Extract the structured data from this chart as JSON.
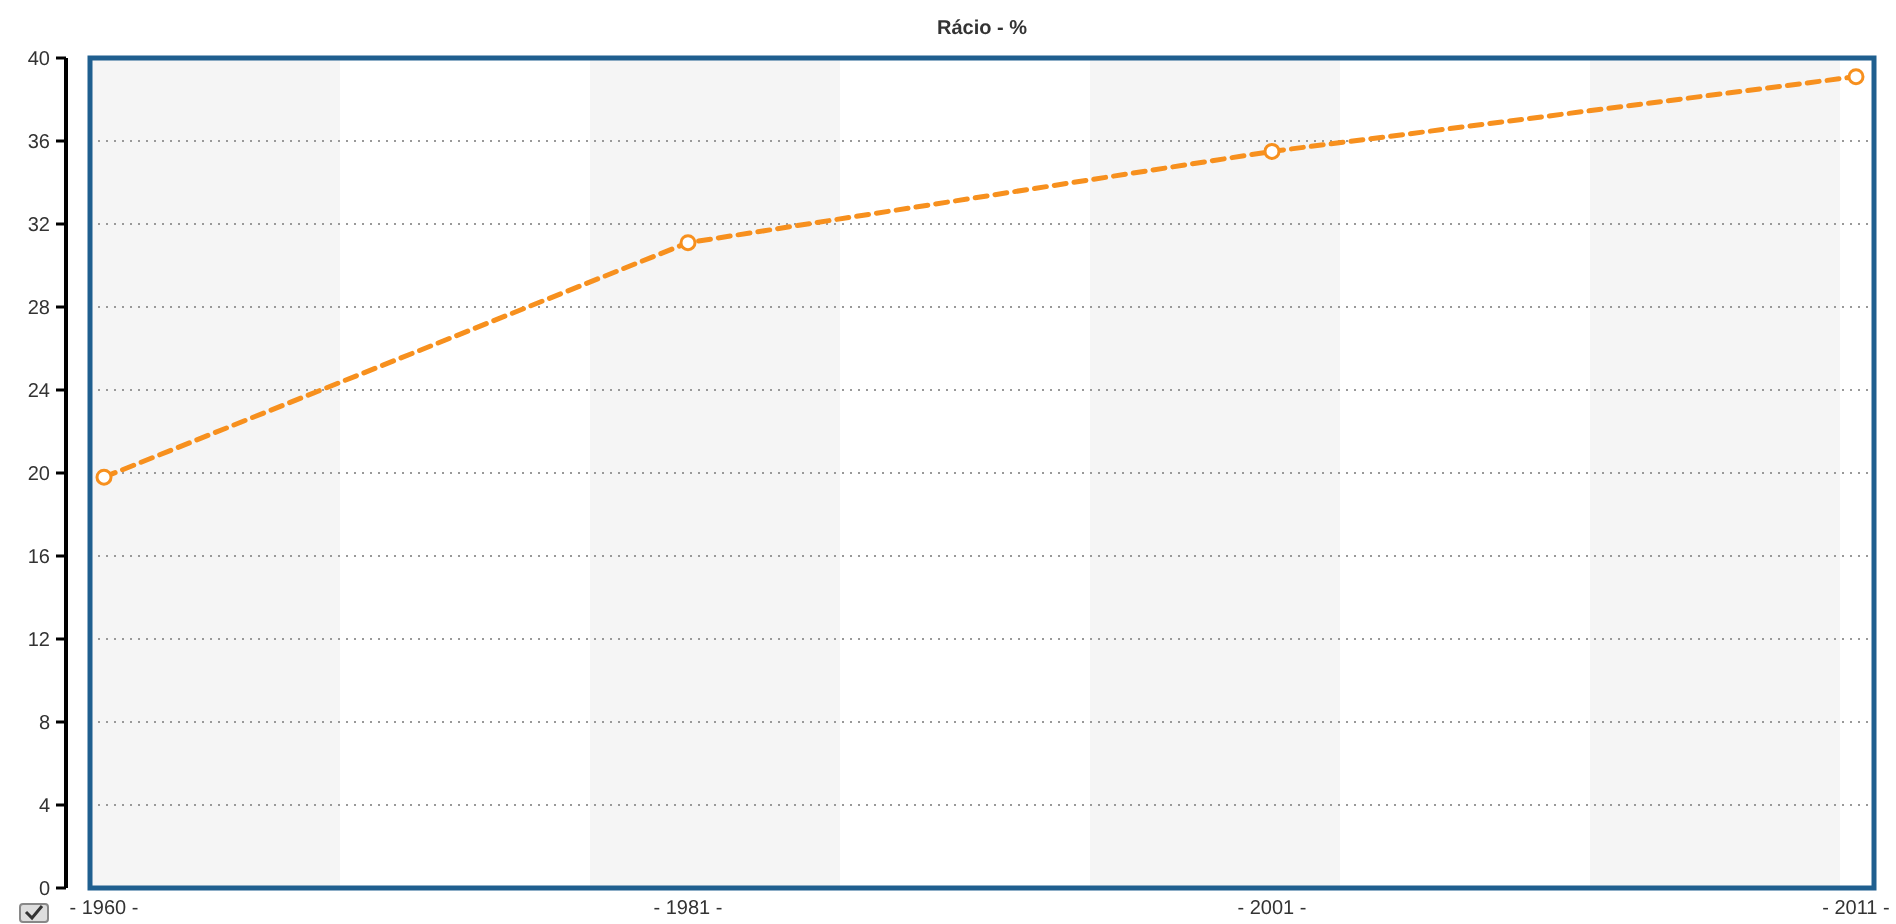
{
  "chart_data": {
    "type": "line",
    "title": "Rácio - %",
    "categories": [
      "- 1960 -",
      "- 1981 -",
      "- 2001 -",
      "- 2011 -"
    ],
    "series": [
      {
        "color": "#f7901e",
        "values": [
          19.8,
          31.1,
          35.5,
          39.1
        ]
      }
    ],
    "ylim": [
      0,
      40
    ],
    "yticks": [
      0,
      4,
      8,
      12,
      16,
      20,
      24,
      28,
      32,
      36,
      40
    ],
    "grid": "y",
    "marker": "circle",
    "line_style": "dashed"
  }
}
